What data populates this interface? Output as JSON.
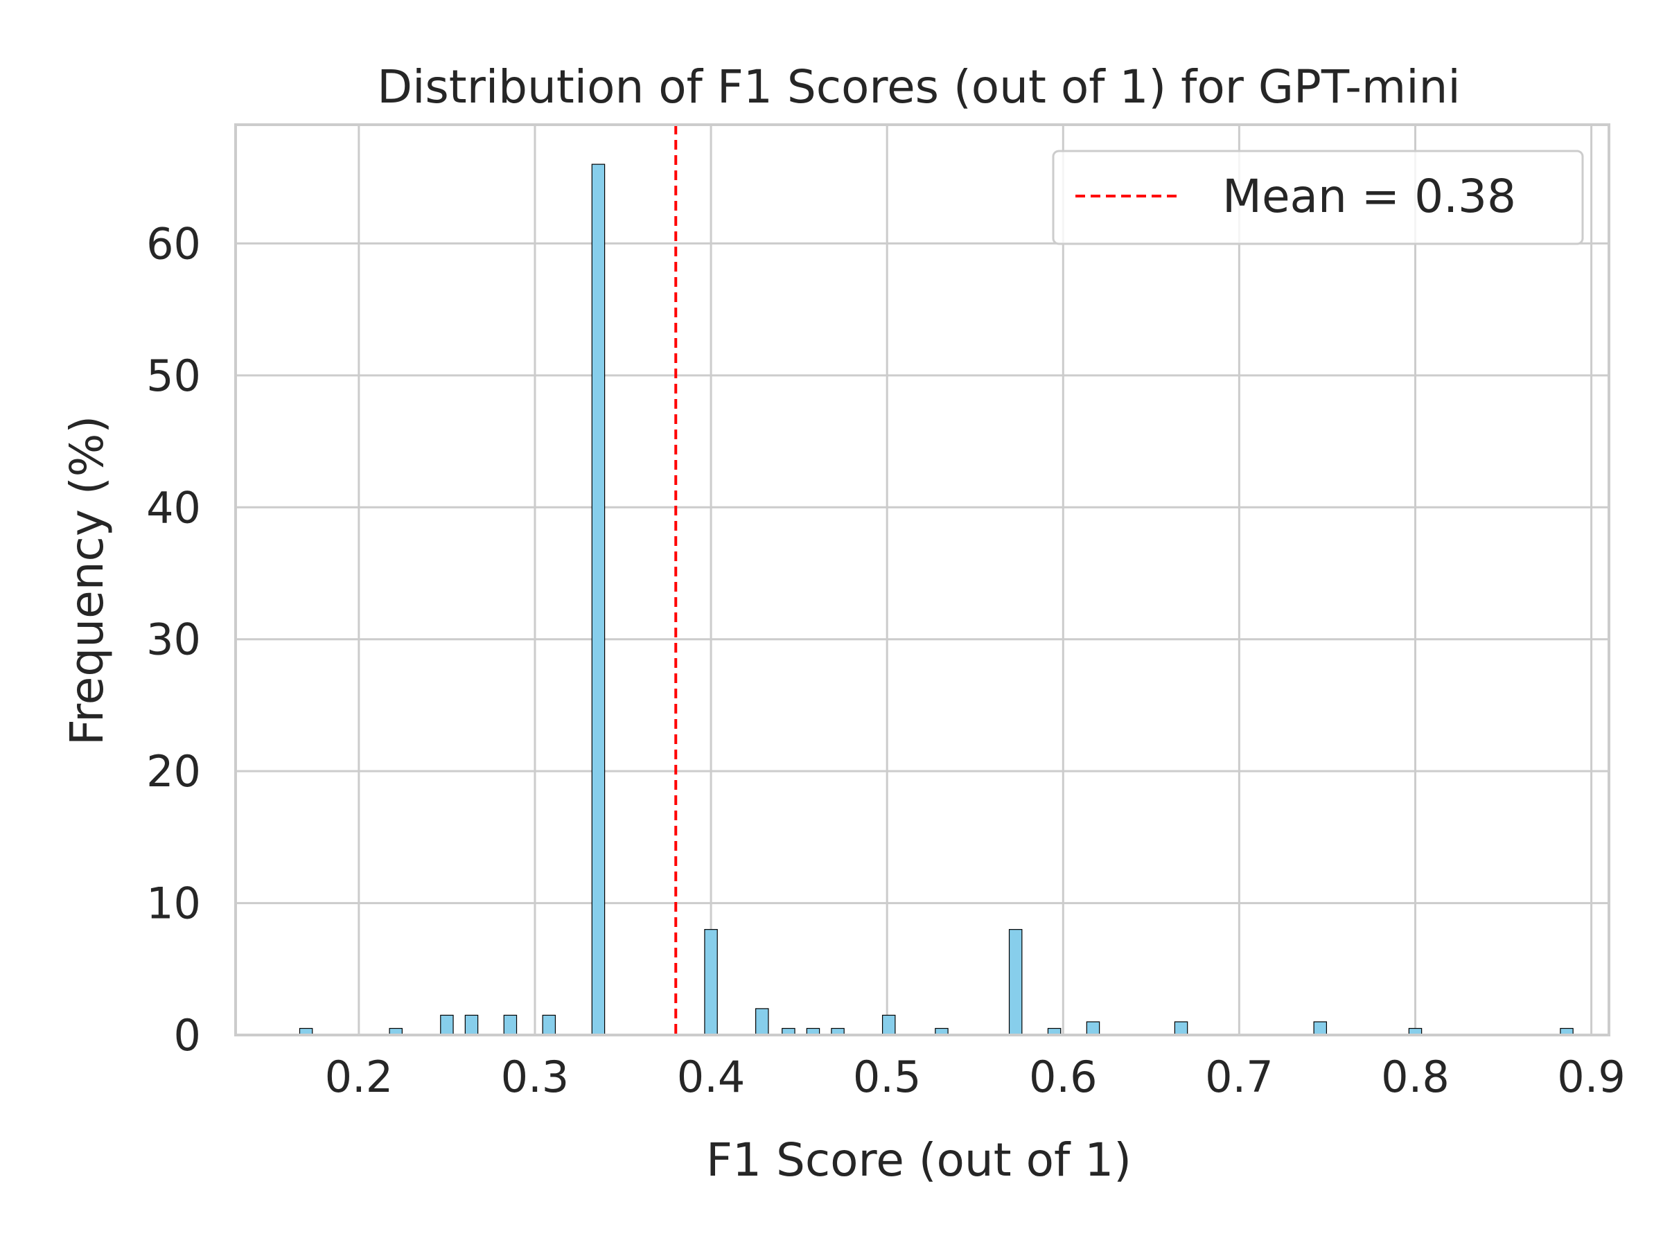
{
  "chart_data": {
    "type": "bar",
    "title": "Distribution of F1 Scores (out of 1) for GPT-mini",
    "xlabel": "F1 Score (out of 1)",
    "ylabel": "Frequency (%)",
    "xlim": [
      0.13,
      0.91
    ],
    "ylim": [
      0,
      69
    ],
    "xticks": [
      "0.2",
      "0.3",
      "0.4",
      "0.5",
      "0.6",
      "0.7",
      "0.8",
      "0.9"
    ],
    "yticks": [
      "0",
      "10",
      "20",
      "30",
      "40",
      "50",
      "60"
    ],
    "grid": true,
    "bar_color": "#87ceeb",
    "bar_edge_color": "#000000",
    "bin_width": 0.0072,
    "bars": [
      {
        "x": 0.17,
        "y": 0.5
      },
      {
        "x": 0.221,
        "y": 0.5
      },
      {
        "x": 0.25,
        "y": 1.5
      },
      {
        "x": 0.264,
        "y": 1.5
      },
      {
        "x": 0.286,
        "y": 1.5
      },
      {
        "x": 0.308,
        "y": 1.5
      },
      {
        "x": 0.336,
        "y": 66.0
      },
      {
        "x": 0.4,
        "y": 8.0
      },
      {
        "x": 0.429,
        "y": 2.0
      },
      {
        "x": 0.444,
        "y": 0.5
      },
      {
        "x": 0.458,
        "y": 0.5
      },
      {
        "x": 0.472,
        "y": 0.5
      },
      {
        "x": 0.501,
        "y": 1.5
      },
      {
        "x": 0.531,
        "y": 0.5
      },
      {
        "x": 0.573,
        "y": 8.0
      },
      {
        "x": 0.595,
        "y": 0.5
      },
      {
        "x": 0.617,
        "y": 1.0
      },
      {
        "x": 0.667,
        "y": 1.0
      },
      {
        "x": 0.746,
        "y": 1.0
      },
      {
        "x": 0.8,
        "y": 0.5
      },
      {
        "x": 0.886,
        "y": 0.5
      }
    ],
    "mean": {
      "value": 0.38,
      "color": "#ff0000",
      "label": "Mean = 0.38"
    },
    "legend": {
      "position": "top-right"
    }
  }
}
